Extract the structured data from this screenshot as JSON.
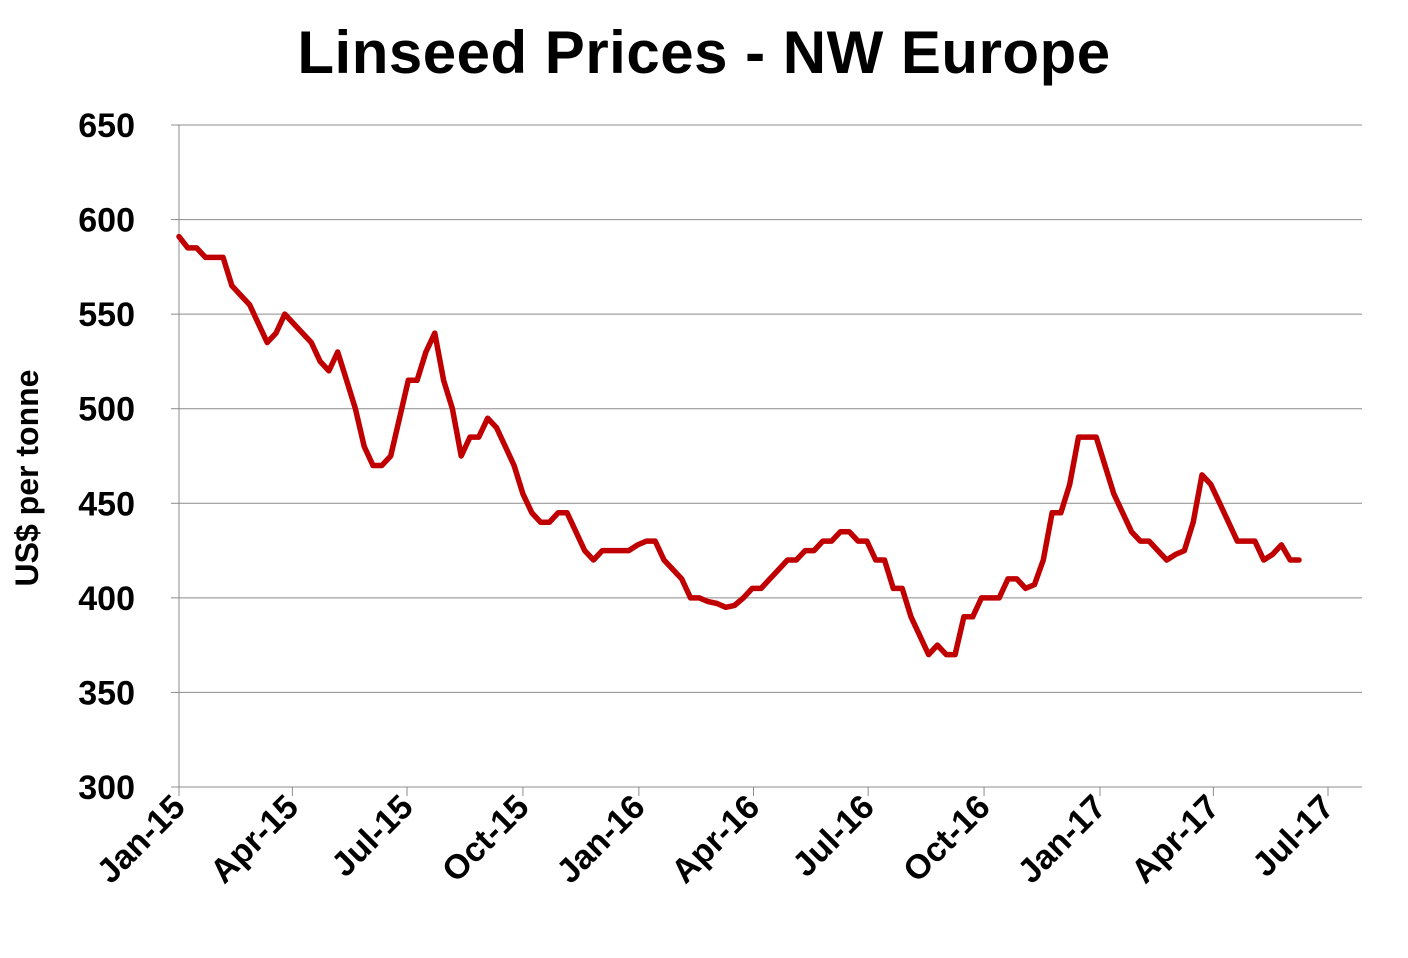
{
  "chart_data": {
    "type": "line",
    "title": "Linseed Prices - NW Europe",
    "ylabel": "US$ per tonne",
    "xlabel": "",
    "ylim": [
      300,
      650
    ],
    "yticks": [
      300,
      350,
      400,
      450,
      500,
      550,
      600,
      650
    ],
    "xlim": [
      "2015-01-01",
      "2017-07-01"
    ],
    "xtick_labels": [
      "Jan-15",
      "Apr-15",
      "Jul-15",
      "Oct-15",
      "Jan-16",
      "Apr-16",
      "Jul-16",
      "Oct-16",
      "Jan-17",
      "Apr-17",
      "Jul-17"
    ],
    "grid": "horizontal",
    "line_color": "#c00000",
    "series": [
      {
        "x": [
          "2015-01-01",
          "2015-01-08",
          "2015-01-15",
          "2015-01-22",
          "2015-01-29",
          "2015-02-05",
          "2015-02-12",
          "2015-02-19",
          "2015-02-26",
          "2015-03-05",
          "2015-03-12",
          "2015-03-19",
          "2015-03-26",
          "2015-04-02",
          "2015-04-09",
          "2015-04-16",
          "2015-04-23",
          "2015-04-30",
          "2015-05-07",
          "2015-05-14",
          "2015-05-21",
          "2015-05-28",
          "2015-06-04",
          "2015-06-11",
          "2015-06-18",
          "2015-06-25",
          "2015-07-02",
          "2015-07-09",
          "2015-07-16",
          "2015-07-23",
          "2015-07-30",
          "2015-08-06",
          "2015-08-13",
          "2015-08-20",
          "2015-08-27",
          "2015-09-03",
          "2015-09-10",
          "2015-09-17",
          "2015-09-24",
          "2015-10-01",
          "2015-10-08",
          "2015-10-15",
          "2015-10-22",
          "2015-10-29",
          "2015-11-05",
          "2015-11-12",
          "2015-11-19",
          "2015-11-26",
          "2015-12-03",
          "2015-12-10",
          "2015-12-17",
          "2015-12-24",
          "2015-12-31",
          "2016-01-07",
          "2016-01-14",
          "2016-01-21",
          "2016-01-28",
          "2016-02-04",
          "2016-02-11",
          "2016-02-18",
          "2016-02-25",
          "2016-03-03",
          "2016-03-10",
          "2016-03-17",
          "2016-03-24",
          "2016-03-31",
          "2016-04-07",
          "2016-04-14",
          "2016-04-21",
          "2016-04-28",
          "2016-05-05",
          "2016-05-12",
          "2016-05-19",
          "2016-05-26",
          "2016-06-02",
          "2016-06-09",
          "2016-06-16",
          "2016-06-23",
          "2016-06-30",
          "2016-07-07",
          "2016-07-14",
          "2016-07-21",
          "2016-07-28",
          "2016-08-04",
          "2016-08-11",
          "2016-08-18",
          "2016-08-25",
          "2016-09-01",
          "2016-09-08",
          "2016-09-15",
          "2016-09-22",
          "2016-09-29",
          "2016-10-06",
          "2016-10-13",
          "2016-10-20",
          "2016-10-27",
          "2016-11-03",
          "2016-11-10",
          "2016-11-17",
          "2016-11-24",
          "2016-12-01",
          "2016-12-08",
          "2016-12-15",
          "2016-12-22",
          "2016-12-29",
          "2017-01-05",
          "2017-01-12",
          "2017-01-19",
          "2017-01-26",
          "2017-02-02",
          "2017-02-09",
          "2017-02-16",
          "2017-02-23",
          "2017-03-02",
          "2017-03-09",
          "2017-03-16",
          "2017-03-23",
          "2017-03-30",
          "2017-04-06",
          "2017-04-13",
          "2017-04-20",
          "2017-04-27",
          "2017-05-04",
          "2017-05-11",
          "2017-05-18",
          "2017-05-25",
          "2017-06-01",
          "2017-06-08"
        ],
        "values": [
          591,
          585,
          585,
          580,
          580,
          580,
          565,
          560,
          555,
          545,
          535,
          540,
          550,
          545,
          540,
          535,
          525,
          520,
          530,
          515,
          500,
          480,
          470,
          470,
          475,
          495,
          515,
          515,
          530,
          540,
          515,
          500,
          475,
          485,
          485,
          495,
          490,
          480,
          470,
          455,
          445,
          440,
          440,
          445,
          445,
          435,
          425,
          420,
          425,
          425,
          425,
          425,
          428,
          430,
          430,
          420,
          415,
          410,
          400,
          400,
          398,
          397,
          395,
          396,
          400,
          405,
          405,
          410,
          415,
          420,
          420,
          425,
          425,
          430,
          430,
          435,
          435,
          430,
          430,
          420,
          420,
          405,
          405,
          390,
          380,
          370,
          375,
          370,
          370,
          390,
          390,
          400,
          400,
          400,
          410,
          410,
          405,
          407,
          420,
          445,
          445,
          460,
          485,
          485,
          485,
          470,
          455,
          445,
          435,
          430,
          430,
          425,
          420,
          423,
          425,
          440,
          465,
          460,
          450,
          440,
          430,
          430,
          430,
          420,
          423,
          428,
          420,
          420
        ]
      }
    ]
  }
}
